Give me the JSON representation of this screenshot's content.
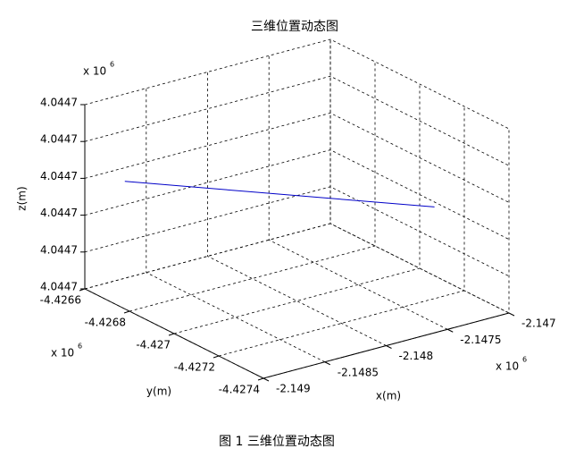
{
  "chart_data": {
    "type": "line3d",
    "title": "三维位置动态图",
    "xlabel": "x(m)",
    "ylabel": "y(m)",
    "zlabel": "z(m)",
    "x_multiplier": {
      "base": "x 10",
      "exponent": "6"
    },
    "y_multiplier": {
      "base": "x 10",
      "exponent": "6"
    },
    "z_multiplier": {
      "base": "x 10",
      "exponent": "6"
    },
    "x": [
      -2.14882,
      -2.14717
    ],
    "y": [
      -4.42668,
      -4.42716
    ],
    "z": [
      4.04473,
      4.044723
    ],
    "color": "#0000c8",
    "xlim": [
      -2.149,
      -2.147
    ],
    "xticks": [
      -2.149,
      -2.1485,
      -2.148,
      -2.1475,
      -2.147
    ],
    "ylim": [
      -4.4274,
      -4.4266
    ],
    "yticks": [
      -4.4266,
      -4.4268,
      -4.427,
      -4.4272,
      -4.4274
    ],
    "zlim": [
      4.0447,
      4.04475
    ],
    "zticks": [
      {
        "value": 4.0447,
        "label": "4.0447"
      },
      {
        "value": 4.04471,
        "label": "4.0447"
      },
      {
        "value": 4.04472,
        "label": "4.0447"
      },
      {
        "value": 4.04473,
        "label": "4.0447"
      },
      {
        "value": 4.04474,
        "label": "4.0447"
      },
      {
        "value": 4.04475,
        "label": "4.0447"
      }
    ],
    "grid": true
  },
  "caption": "图 1  三维位置动态图"
}
